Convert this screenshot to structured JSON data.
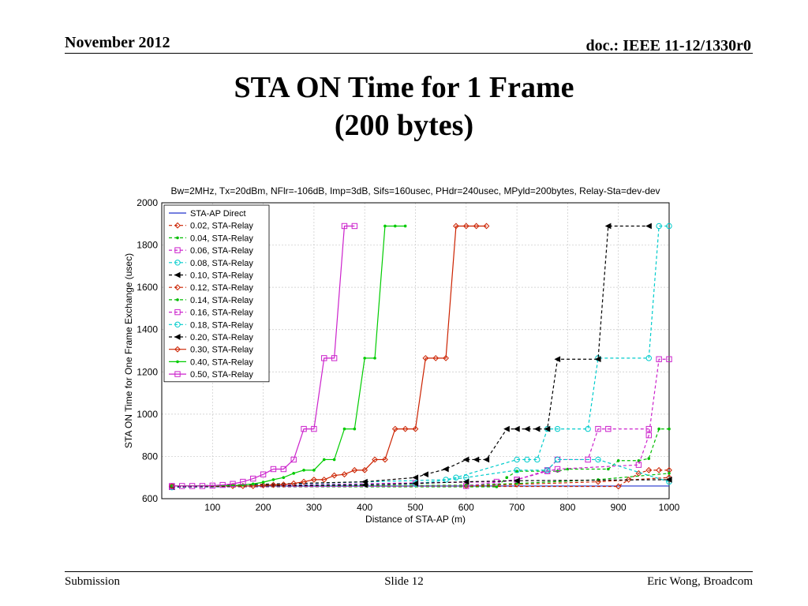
{
  "header": {
    "date": "November 2012",
    "doc": "doc.: IEEE 11-12/1330r0"
  },
  "slide": {
    "title_line1": "STA ON Time for 1 Frame",
    "title_line2": "(200 bytes)"
  },
  "footer": {
    "left": "Submission",
    "center": "Slide 12",
    "right": "Eric Wong, Broadcom"
  },
  "chart_data": {
    "type": "line",
    "title": "Bw=2MHz, Tx=20dBm, NFlr=-106dB, Imp=3dB, Sifs=160usec, PHdr=240usec, MPyld=200bytes, Relay-Sta=dev-dev",
    "xlabel": "Distance of STA-AP (m)",
    "ylabel": "STA ON Time for One Frame Exchange (usec)",
    "xlim": [
      0,
      1000
    ],
    "ylim": [
      600,
      2000
    ],
    "xticks": [
      100,
      200,
      300,
      400,
      500,
      600,
      700,
      800,
      900,
      1000
    ],
    "yticks": [
      600,
      800,
      1000,
      1200,
      1400,
      1600,
      1800,
      2000
    ],
    "grid": true,
    "legend_position": "top-left",
    "series": [
      {
        "name": "STA-AP Direct",
        "color": "#2233cc",
        "dash": "solid",
        "marker": "none",
        "x": [
          20,
          860,
          880,
          1000
        ],
        "y": [
          660,
          660,
          660,
          660
        ]
      },
      {
        "name": "0.02, STA-Relay",
        "color": "#cc2200",
        "dash": "dashed",
        "marker": "diamond",
        "x": [
          20,
          900,
          920,
          940,
          960,
          980,
          1000
        ],
        "y": [
          658,
          658,
          690,
          720,
          735,
          735,
          735
        ]
      },
      {
        "name": "0.04, STA-Relay",
        "color": "#00bb00",
        "dash": "dashed",
        "marker": "dot",
        "x": [
          20,
          660,
          680,
          700,
          780,
          800,
          880,
          900,
          940,
          960,
          980,
          1000
        ],
        "y": [
          656,
          656,
          700,
          730,
          730,
          740,
          740,
          780,
          780,
          790,
          930,
          930
        ]
      },
      {
        "name": "0.06, STA-Relay",
        "color": "#cc22cc",
        "dash": "dashed",
        "marker": "square",
        "x": [
          20,
          500,
          660,
          700,
          760,
          780,
          940,
          960,
          980,
          1000
        ],
        "y": [
          655,
          675,
          680,
          690,
          730,
          740,
          760,
          900,
          1260,
          1260
        ]
      },
      {
        "name": "0.08, STA-Relay",
        "color": "#00cccc",
        "dash": "dashed",
        "marker": "circle",
        "x": [
          20,
          560,
          580,
          700,
          720,
          740,
          760,
          780,
          840,
          860,
          960,
          980,
          1000
        ],
        "y": [
          654,
          690,
          700,
          785,
          785,
          785,
          930,
          930,
          930,
          1265,
          1265,
          1890,
          1890
        ]
      },
      {
        "name": "0.10, STA-Relay",
        "color": "#000000",
        "dash": "dashed",
        "marker": "triangle-left",
        "x": [
          20,
          400,
          500,
          520,
          560,
          600,
          620,
          640,
          680,
          700,
          720,
          740,
          760,
          780,
          860,
          880,
          960
        ],
        "y": [
          658,
          680,
          700,
          715,
          740,
          785,
          785,
          785,
          930,
          930,
          930,
          930,
          930,
          1260,
          1260,
          1890,
          1890
        ]
      },
      {
        "name": "0.12, STA-Relay",
        "color": "#cc2200",
        "dash": "dashed",
        "marker": "diamond",
        "x": [
          20,
          600,
          700,
          860,
          1000
        ],
        "y": [
          657,
          660,
          668,
          680,
          700
        ]
      },
      {
        "name": "0.14, STA-Relay",
        "color": "#00bb00",
        "dash": "dashed",
        "marker": "dot",
        "x": [
          20,
          600,
          700,
          860,
          1000
        ],
        "y": [
          656,
          664,
          672,
          690,
          720
        ]
      },
      {
        "name": "0.16, STA-Relay",
        "color": "#cc22cc",
        "dash": "dashed",
        "marker": "square",
        "x": [
          20,
          600,
          700,
          760,
          780,
          840,
          860,
          880,
          960
        ],
        "y": [
          655,
          660,
          690,
          735,
          785,
          785,
          930,
          930,
          930
        ]
      },
      {
        "name": "0.18, STA-Relay",
        "color": "#00cccc",
        "dash": "dashed",
        "marker": "circle",
        "x": [
          20,
          500,
          600,
          700,
          760,
          780,
          860,
          1000
        ],
        "y": [
          654,
          670,
          700,
          735,
          735,
          785,
          785,
          680
        ]
      },
      {
        "name": "0.20, STA-Relay",
        "color": "#000000",
        "dash": "dashed",
        "marker": "triangle-left",
        "x": [
          20,
          400,
          500,
          600,
          700,
          1000
        ],
        "y": [
          656,
          665,
          672,
          680,
          685,
          690
        ]
      },
      {
        "name": "0.30, STA-Relay",
        "color": "#cc2200",
        "dash": "solid",
        "marker": "diamond",
        "x": [
          20,
          140,
          160,
          180,
          200,
          220,
          240,
          260,
          280,
          300,
          320,
          340,
          360,
          380,
          400,
          420,
          440,
          460,
          480,
          500,
          520,
          540,
          560,
          580,
          600,
          620,
          640
        ],
        "y": [
          660,
          660,
          660,
          660,
          663,
          665,
          667,
          672,
          680,
          690,
          690,
          710,
          715,
          735,
          735,
          785,
          785,
          930,
          930,
          930,
          1265,
          1265,
          1265,
          1890,
          1890,
          1890,
          1890
        ]
      },
      {
        "name": "0.40, STA-Relay",
        "color": "#00cc00",
        "dash": "solid",
        "marker": "dot",
        "x": [
          20,
          140,
          160,
          180,
          200,
          220,
          240,
          260,
          280,
          300,
          320,
          340,
          360,
          380,
          400,
          420,
          440,
          460,
          480
        ],
        "y": [
          660,
          662,
          665,
          670,
          678,
          690,
          700,
          720,
          735,
          735,
          785,
          785,
          930,
          930,
          1265,
          1265,
          1890,
          1890,
          1890
        ]
      },
      {
        "name": "0.50, STA-Relay",
        "color": "#cc22cc",
        "dash": "solid",
        "marker": "square",
        "x": [
          20,
          40,
          60,
          80,
          100,
          120,
          140,
          160,
          180,
          200,
          220,
          240,
          260,
          280,
          300,
          320,
          340,
          360,
          380
        ],
        "y": [
          660,
          660,
          660,
          660,
          662,
          665,
          670,
          680,
          695,
          715,
          740,
          740,
          785,
          930,
          930,
          1265,
          1265,
          1890,
          1890
        ]
      }
    ]
  }
}
